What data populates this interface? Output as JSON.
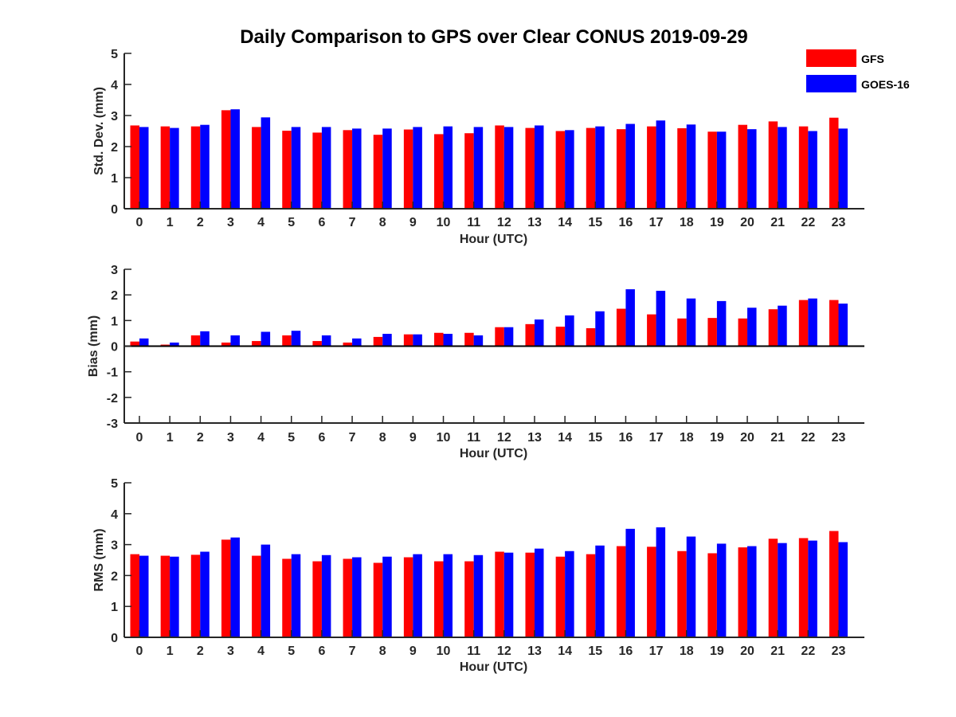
{
  "chart_data": {
    "title": "Daily Comparison to GPS over Clear CONUS 2019-09-29",
    "legend": {
      "position": "top-right",
      "entries": [
        {
          "name": "GFS",
          "color": "#ff0000"
        },
        {
          "name": "GOES-16",
          "color": "#0000ff"
        }
      ]
    },
    "panels": [
      {
        "type": "bar",
        "ylabel": "Std. Dev. (mm)",
        "xlabel": "Hour (UTC)",
        "ylim": [
          0,
          5
        ],
        "yticks": [
          "0",
          "1",
          "2",
          "3",
          "4",
          "5"
        ],
        "categories": [
          "0",
          "1",
          "2",
          "3",
          "4",
          "5",
          "6",
          "7",
          "8",
          "9",
          "10",
          "11",
          "12",
          "13",
          "14",
          "15",
          "16",
          "17",
          "18",
          "19",
          "20",
          "21",
          "22",
          "23"
        ],
        "series": [
          {
            "name": "GFS",
            "color": "#ff0000",
            "values": [
              2.68,
              2.65,
              2.65,
              3.17,
              2.63,
              2.51,
              2.45,
              2.53,
              2.38,
              2.55,
              2.4,
              2.43,
              2.68,
              2.6,
              2.5,
              2.6,
              2.56,
              2.65,
              2.59,
              2.48,
              2.7,
              2.81,
              2.65,
              2.93
            ]
          },
          {
            "name": "GOES-16",
            "color": "#0000ff",
            "values": [
              2.63,
              2.6,
              2.7,
              3.2,
              2.94,
              2.63,
              2.63,
              2.58,
              2.58,
              2.63,
              2.65,
              2.63,
              2.63,
              2.68,
              2.53,
              2.65,
              2.73,
              2.84,
              2.71,
              2.48,
              2.56,
              2.63,
              2.5,
              2.58
            ]
          }
        ]
      },
      {
        "type": "bar",
        "ylabel": "Bias (mm)",
        "xlabel": "Hour (UTC)",
        "ylim": [
          -3,
          3
        ],
        "yticks": [
          "-3",
          "-2",
          "-1",
          "0",
          "1",
          "2",
          "3"
        ],
        "categories": [
          "0",
          "1",
          "2",
          "3",
          "4",
          "5",
          "6",
          "7",
          "8",
          "9",
          "10",
          "11",
          "12",
          "13",
          "14",
          "15",
          "16",
          "17",
          "18",
          "19",
          "20",
          "21",
          "22",
          "23"
        ],
        "series": [
          {
            "name": "GFS",
            "color": "#ff0000",
            "values": [
              0.18,
              0.06,
              0.42,
              0.14,
              0.2,
              0.42,
              0.2,
              0.14,
              0.36,
              0.46,
              0.52,
              0.52,
              0.74,
              0.86,
              0.76,
              0.7,
              1.46,
              1.24,
              1.08,
              1.1,
              1.08,
              1.44,
              1.8,
              1.8
            ]
          },
          {
            "name": "GOES-16",
            "color": "#0000ff",
            "values": [
              0.3,
              0.14,
              0.58,
              0.42,
              0.56,
              0.6,
              0.42,
              0.3,
              0.48,
              0.46,
              0.48,
              0.42,
              0.74,
              1.04,
              1.2,
              1.36,
              2.22,
              2.16,
              1.86,
              1.76,
              1.5,
              1.58,
              1.86,
              1.66
            ]
          }
        ]
      },
      {
        "type": "bar",
        "ylabel": "RMS (mm)",
        "xlabel": "Hour (UTC)",
        "ylim": [
          0,
          5
        ],
        "yticks": [
          "0",
          "1",
          "2",
          "3",
          "4",
          "5"
        ],
        "categories": [
          "0",
          "1",
          "2",
          "3",
          "4",
          "5",
          "6",
          "7",
          "8",
          "9",
          "10",
          "11",
          "12",
          "13",
          "14",
          "15",
          "16",
          "17",
          "18",
          "19",
          "20",
          "21",
          "22",
          "23"
        ],
        "series": [
          {
            "name": "GFS",
            "color": "#ff0000",
            "values": [
              2.69,
              2.64,
              2.67,
              3.16,
              2.64,
              2.54,
              2.46,
              2.54,
              2.41,
              2.59,
              2.46,
              2.46,
              2.77,
              2.74,
              2.61,
              2.69,
              2.95,
              2.93,
              2.79,
              2.72,
              2.91,
              3.19,
              3.21,
              3.44
            ]
          },
          {
            "name": "GOES-16",
            "color": "#0000ff",
            "values": [
              2.64,
              2.61,
              2.77,
              3.23,
              3.0,
              2.69,
              2.66,
              2.59,
              2.61,
              2.69,
              2.69,
              2.66,
              2.74,
              2.87,
              2.79,
              2.97,
              3.51,
              3.56,
              3.26,
              3.03,
              2.95,
              3.05,
              3.13,
              3.08
            ]
          }
        ]
      }
    ]
  }
}
